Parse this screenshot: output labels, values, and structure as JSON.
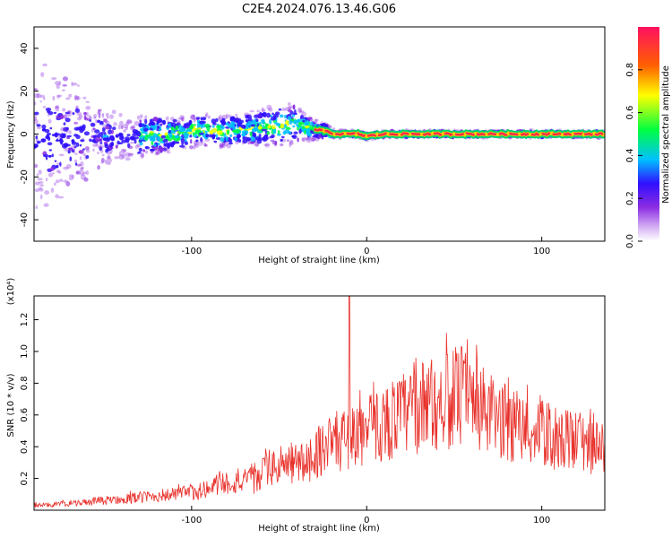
{
  "title": "C2E4.2024.076.13.46.G06",
  "colors": {
    "snr_line": "#e8302a",
    "ridge_core": "#ff2a4a",
    "axis": "#000000"
  },
  "chart_data": [
    {
      "type": "heatmap",
      "name": "spectrogram",
      "xlabel": "Height of straight line (km)",
      "ylabel": "Frequency (Hz)",
      "xlim": [
        -190,
        136
      ],
      "ylim": [
        -50,
        50
      ],
      "xticks": [
        -100,
        0,
        100
      ],
      "xtick_labels": [
        "-100",
        "0",
        "100"
      ],
      "yticks": [
        -40,
        -20,
        0,
        20,
        40
      ],
      "ytick_labels": [
        "-40",
        "-20",
        "0",
        "20",
        "40"
      ],
      "ridge": {
        "x": [
          -185,
          -170,
          -150,
          -130,
          -110,
          -95,
          -85,
          -70,
          -60,
          -50,
          -42,
          -35,
          -28,
          -22,
          -18,
          -10,
          -5,
          0,
          10,
          30,
          50,
          70,
          90,
          110,
          136
        ],
        "freq": [
          -1,
          -2,
          -2,
          -1,
          0,
          2,
          1,
          2,
          3,
          4,
          5,
          3,
          2,
          1,
          0,
          0,
          0,
          -1,
          0,
          0,
          0,
          0,
          0,
          0,
          0
        ],
        "spread": [
          35,
          30,
          14,
          9,
          8,
          7,
          7,
          7,
          8,
          9,
          9,
          6,
          4,
          3,
          2,
          1.5,
          1.5,
          1.5,
          1.5,
          1.5,
          1.5,
          1.5,
          1.5,
          1.5,
          1.5
        ]
      },
      "colorbar": {
        "label": "Normalized spectral amplitude",
        "range": [
          0,
          1
        ],
        "ticks": [
          0.0,
          0.2,
          0.4,
          0.6,
          0.8
        ],
        "tick_labels": [
          "0.0",
          "0.2",
          "0.4",
          "0.6",
          "0.8"
        ],
        "colors": [
          "#ffffff",
          "#8a2be2",
          "#3010ff",
          "#00c0ff",
          "#00ff40",
          "#ffff00",
          "#ff6000",
          "#ff1060"
        ]
      }
    },
    {
      "type": "line",
      "name": "snr",
      "xlabel": "Height of straight line (km)",
      "ylabel": "SNR (10 * v/v)",
      "yscale_label": "(x10⁴)",
      "xlim": [
        -190,
        136
      ],
      "ylim": [
        0,
        1.35
      ],
      "xticks": [
        -100,
        0,
        100
      ],
      "xtick_labels": [
        "-100",
        "0",
        "100"
      ],
      "yticks": [
        0.2,
        0.4,
        0.6,
        0.8,
        1.0,
        1.2
      ],
      "ytick_labels": [
        "0.2",
        "0.4",
        "0.6",
        "0.8",
        "1.0",
        "1.2"
      ],
      "envelope": {
        "x": [
          -190,
          -170,
          -150,
          -130,
          -110,
          -100,
          -90,
          -85,
          -70,
          -62,
          -58,
          -45,
          -35,
          -30,
          -25,
          -20,
          -15,
          -10,
          -5,
          0,
          10,
          20,
          30,
          40,
          50,
          60,
          70,
          80,
          90,
          100,
          110,
          120,
          136
        ],
        "y": [
          0.03,
          0.04,
          0.06,
          0.08,
          0.1,
          0.11,
          0.12,
          0.17,
          0.18,
          0.19,
          0.26,
          0.28,
          0.3,
          0.35,
          0.4,
          0.42,
          0.44,
          0.45,
          0.48,
          0.5,
          0.55,
          0.6,
          0.64,
          0.68,
          0.7,
          0.67,
          0.6,
          0.55,
          0.5,
          0.48,
          0.45,
          0.42,
          0.38
        ]
      },
      "spikes": [
        {
          "x": -10,
          "y": 1.35
        },
        {
          "x": 28,
          "y": 0.96
        },
        {
          "x": 46,
          "y": 0.98
        },
        {
          "x": 54,
          "y": 1.03
        }
      ]
    }
  ]
}
